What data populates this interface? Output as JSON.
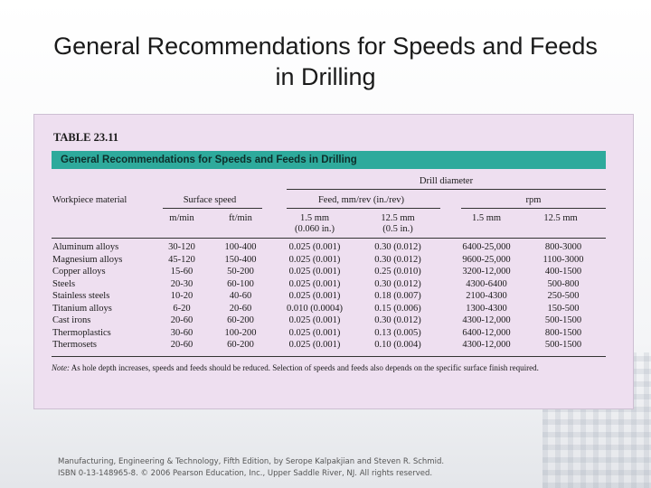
{
  "slide": {
    "title_line1": "General Recommendations for Speeds and Feeds",
    "title_line2": "in Drilling"
  },
  "table": {
    "label": "TABLE 23.11",
    "caption": "General Recommendations for Speeds and Feeds in Drilling",
    "header": {
      "group": "Drill diameter",
      "workpiece": "Workpiece material",
      "surface_speed": "Surface speed",
      "feed": "Feed, mm/rev (in./rev)",
      "rpm": "rpm",
      "m_min": "m/min",
      "ft_min": "ft/min",
      "feed_small": "1.5 mm",
      "feed_small_in": "(0.060 in.)",
      "feed_large": "12.5 mm",
      "feed_large_in": "(0.5 in.)",
      "rpm_small": "1.5 mm",
      "rpm_large": "12.5 mm"
    },
    "rows": [
      {
        "material": "Aluminum alloys",
        "m_min": "30-120",
        "ft_min": "100-400",
        "feed_small": "0.025 (0.001)",
        "feed_large": "0.30 (0.012)",
        "rpm_small": "6400-25,000",
        "rpm_large": "800-3000"
      },
      {
        "material": "Magnesium alloys",
        "m_min": "45-120",
        "ft_min": "150-400",
        "feed_small": "0.025 (0.001)",
        "feed_large": "0.30 (0.012)",
        "rpm_small": "9600-25,000",
        "rpm_large": "1100-3000"
      },
      {
        "material": "Copper alloys",
        "m_min": "15-60",
        "ft_min": "50-200",
        "feed_small": "0.025 (0.001)",
        "feed_large": "0.25 (0.010)",
        "rpm_small": "3200-12,000",
        "rpm_large": "400-1500"
      },
      {
        "material": "Steels",
        "m_min": "20-30",
        "ft_min": "60-100",
        "feed_small": "0.025 (0.001)",
        "feed_large": "0.30 (0.012)",
        "rpm_small": "4300-6400",
        "rpm_large": "500-800"
      },
      {
        "material": "Stainless steels",
        "m_min": "10-20",
        "ft_min": "40-60",
        "feed_small": "0.025 (0.001)",
        "feed_large": "0.18 (0.007)",
        "rpm_small": "2100-4300",
        "rpm_large": "250-500"
      },
      {
        "material": "Titanium alloys",
        "m_min": "6-20",
        "ft_min": "20-60",
        "feed_small": "0.010 (0.0004)",
        "feed_large": "0.15 (0.006)",
        "rpm_small": "1300-4300",
        "rpm_large": "150-500"
      },
      {
        "material": "Cast irons",
        "m_min": "20-60",
        "ft_min": "60-200",
        "feed_small": "0.025 (0.001)",
        "feed_large": "0.30 (0.012)",
        "rpm_small": "4300-12,000",
        "rpm_large": "500-1500"
      },
      {
        "material": "Thermoplastics",
        "m_min": "30-60",
        "ft_min": "100-200",
        "feed_small": "0.025 (0.001)",
        "feed_large": "0.13 (0.005)",
        "rpm_small": "6400-12,000",
        "rpm_large": "800-1500"
      },
      {
        "material": "Thermosets",
        "m_min": "20-60",
        "ft_min": "60-200",
        "feed_small": "0.025 (0.001)",
        "feed_large": "0.10 (0.004)",
        "rpm_small": "4300-12,000",
        "rpm_large": "500-1500"
      }
    ],
    "note_label": "Note:",
    "note_text": "As hole depth increases, speeds and feeds should be reduced. Selection of speeds and feeds also depends on the specific surface finish required."
  },
  "footer": {
    "line1": "Manufacturing, Engineering & Technology, Fifth Edition, by Serope Kalpakjian and Steven R. Schmid.",
    "line2": "ISBN 0-13-148965-8. © 2006 Pearson Education, Inc., Upper Saddle River, NJ.  All rights reserved."
  }
}
